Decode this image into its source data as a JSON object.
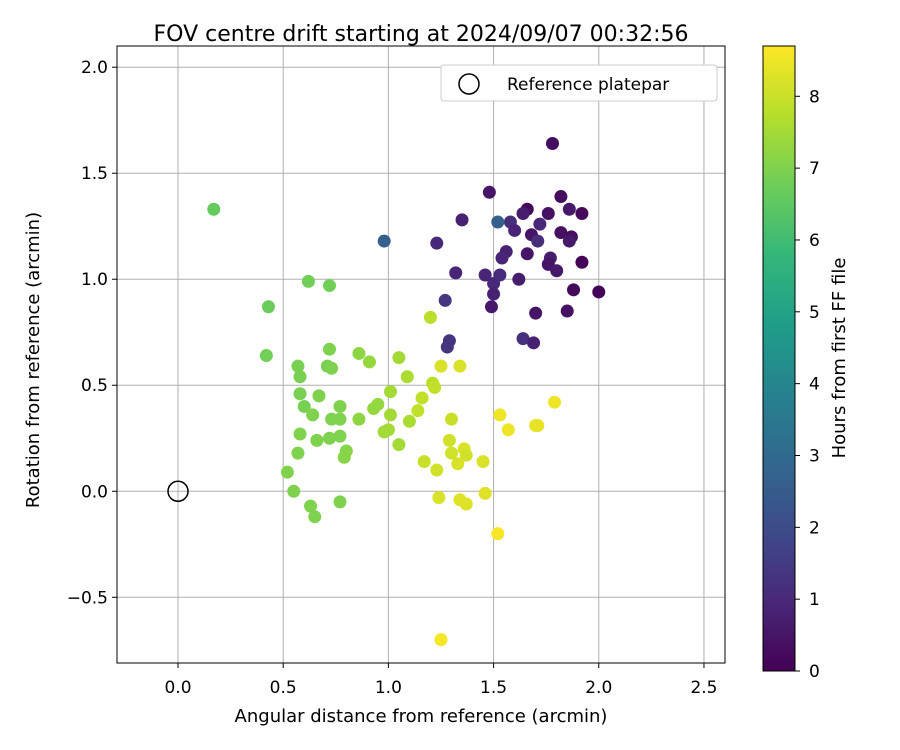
{
  "chart_data": {
    "type": "scatter",
    "title": "FOV centre drift starting at 2024/09/07 00:32:56",
    "xlabel": "Angular distance from reference (arcmin)",
    "ylabel": "Rotation from reference (arcmin)",
    "xlim": [
      -0.29,
      2.6
    ],
    "ylim": [
      -0.81,
      2.1
    ],
    "xticks": [
      0.0,
      0.5,
      1.0,
      1.5,
      2.0,
      2.5
    ],
    "xtick_labels": [
      "0.0",
      "0.5",
      "1.0",
      "1.5",
      "2.0",
      "2.5"
    ],
    "yticks": [
      -0.5,
      0.0,
      0.5,
      1.0,
      1.5,
      2.0
    ],
    "ytick_labels": [
      "−0.5",
      "0.0",
      "0.5",
      "1.0",
      "1.5",
      "2.0"
    ],
    "grid": true,
    "legend": {
      "placement": "top-right",
      "entries": [
        "Reference platepar"
      ]
    },
    "colorbar": {
      "label": "Hours from first FF file",
      "colormap": "viridis",
      "range": [
        0,
        8.7
      ],
      "ticks": [
        0,
        1,
        2,
        3,
        4,
        5,
        6,
        7,
        8
      ],
      "tick_labels": [
        "0",
        "1",
        "2",
        "3",
        "4",
        "5",
        "6",
        "7",
        "8"
      ]
    },
    "reference_point": {
      "x": 0.0,
      "y": 0.0,
      "name": "Reference platepar"
    },
    "series": [
      {
        "values": [
          [
            1.78,
            1.64,
            0.3
          ],
          [
            1.48,
            1.41,
            0.5
          ],
          [
            1.66,
            1.33,
            0.2
          ],
          [
            1.64,
            1.31,
            0.7
          ],
          [
            1.76,
            1.31,
            0.4
          ],
          [
            1.82,
            1.39,
            0.3
          ],
          [
            1.86,
            1.33,
            0.6
          ],
          [
            1.92,
            1.31,
            0.2
          ],
          [
            1.35,
            1.28,
            0.8
          ],
          [
            1.58,
            1.27,
            1.2
          ],
          [
            1.6,
            1.23,
            0.9
          ],
          [
            1.72,
            1.26,
            1.0
          ],
          [
            1.68,
            1.21,
            0.5
          ],
          [
            1.82,
            1.22,
            0.4
          ],
          [
            1.87,
            1.2,
            0.3
          ],
          [
            1.71,
            1.18,
            1.1
          ],
          [
            1.23,
            1.17,
            1.0
          ],
          [
            1.86,
            1.18,
            0.6
          ],
          [
            1.56,
            1.13,
            0.8
          ],
          [
            1.66,
            1.12,
            0.5
          ],
          [
            1.54,
            1.1,
            0.9
          ],
          [
            1.77,
            1.1,
            0.7
          ],
          [
            1.76,
            1.07,
            0.5
          ],
          [
            1.92,
            1.08,
            0.1
          ],
          [
            1.8,
            1.04,
            0.6
          ],
          [
            1.46,
            1.02,
            0.9
          ],
          [
            1.53,
            1.02,
            1.1
          ],
          [
            1.5,
            0.98,
            1.0
          ],
          [
            1.62,
            1.0,
            0.7
          ],
          [
            1.32,
            1.03,
            0.9
          ],
          [
            1.5,
            0.93,
            0.8
          ],
          [
            1.88,
            0.95,
            0.2
          ],
          [
            2.0,
            0.94,
            0.1
          ],
          [
            1.27,
            0.9,
            1.4
          ],
          [
            1.49,
            0.87,
            0.6
          ],
          [
            1.7,
            0.84,
            0.5
          ],
          [
            1.85,
            0.85,
            0.4
          ],
          [
            1.29,
            0.71,
            1.3
          ],
          [
            1.28,
            0.68,
            1.3
          ],
          [
            1.64,
            0.72,
            1.2
          ],
          [
            1.69,
            0.7,
            0.8
          ],
          [
            0.98,
            1.18,
            2.6
          ],
          [
            1.52,
            1.27,
            2.6
          ],
          [
            0.17,
            1.33,
            6.6
          ],
          [
            0.62,
            0.99,
            6.8
          ],
          [
            0.72,
            0.97,
            6.8
          ],
          [
            0.43,
            0.87,
            6.7
          ],
          [
            0.42,
            0.64,
            6.8
          ],
          [
            0.57,
            0.59,
            6.9
          ],
          [
            0.58,
            0.54,
            6.9
          ],
          [
            0.72,
            0.67,
            7.0
          ],
          [
            0.71,
            0.59,
            6.9
          ],
          [
            0.73,
            0.58,
            7.0
          ],
          [
            0.58,
            0.46,
            6.9
          ],
          [
            0.6,
            0.4,
            6.9
          ],
          [
            0.67,
            0.45,
            7.0
          ],
          [
            0.77,
            0.4,
            7.0
          ],
          [
            0.64,
            0.36,
            7.0
          ],
          [
            0.73,
            0.34,
            7.0
          ],
          [
            0.77,
            0.34,
            7.0
          ],
          [
            0.58,
            0.27,
            7.0
          ],
          [
            0.66,
            0.24,
            7.0
          ],
          [
            0.72,
            0.25,
            7.0
          ],
          [
            0.77,
            0.26,
            7.0
          ],
          [
            0.8,
            0.19,
            7.1
          ],
          [
            0.79,
            0.16,
            7.1
          ],
          [
            0.57,
            0.18,
            7.0
          ],
          [
            0.52,
            0.09,
            7.0
          ],
          [
            0.55,
            0.0,
            7.0
          ],
          [
            0.63,
            -0.07,
            7.0
          ],
          [
            0.65,
            -0.12,
            7.0
          ],
          [
            0.77,
            -0.05,
            7.0
          ],
          [
            0.86,
            0.65,
            7.2
          ],
          [
            0.91,
            0.61,
            7.3
          ],
          [
            0.86,
            0.34,
            7.2
          ],
          [
            0.93,
            0.39,
            7.3
          ],
          [
            0.95,
            0.41,
            7.3
          ],
          [
            1.05,
            0.63,
            7.5
          ],
          [
            1.09,
            0.54,
            7.6
          ],
          [
            1.01,
            0.47,
            7.5
          ],
          [
            1.01,
            0.36,
            7.5
          ],
          [
            0.98,
            0.28,
            7.5
          ],
          [
            1.0,
            0.29,
            7.5
          ],
          [
            1.05,
            0.22,
            7.5
          ],
          [
            1.1,
            0.33,
            7.6
          ],
          [
            1.2,
            0.82,
            7.8
          ],
          [
            1.14,
            0.38,
            7.9
          ],
          [
            1.16,
            0.44,
            7.9
          ],
          [
            1.21,
            0.51,
            7.8
          ],
          [
            1.22,
            0.49,
            7.9
          ],
          [
            1.17,
            0.14,
            8.0
          ],
          [
            1.3,
            0.34,
            8.0
          ],
          [
            1.25,
            0.59,
            8.2
          ],
          [
            1.34,
            0.59,
            8.2
          ],
          [
            1.29,
            0.24,
            8.1
          ],
          [
            1.3,
            0.18,
            8.1
          ],
          [
            1.36,
            0.2,
            8.2
          ],
          [
            1.37,
            0.17,
            8.1
          ],
          [
            1.33,
            0.13,
            8.2
          ],
          [
            1.23,
            0.1,
            8.1
          ],
          [
            1.45,
            0.14,
            8.2
          ],
          [
            1.24,
            -0.03,
            8.2
          ],
          [
            1.34,
            -0.04,
            8.3
          ],
          [
            1.37,
            -0.06,
            8.3
          ],
          [
            1.46,
            -0.01,
            8.3
          ],
          [
            1.53,
            0.36,
            8.5
          ],
          [
            1.57,
            0.29,
            8.5
          ],
          [
            1.7,
            0.31,
            8.4
          ],
          [
            1.71,
            0.31,
            8.4
          ],
          [
            1.79,
            0.42,
            8.5
          ],
          [
            1.52,
            -0.2,
            8.6
          ],
          [
            1.25,
            -0.7,
            8.6
          ]
        ]
      }
    ]
  }
}
